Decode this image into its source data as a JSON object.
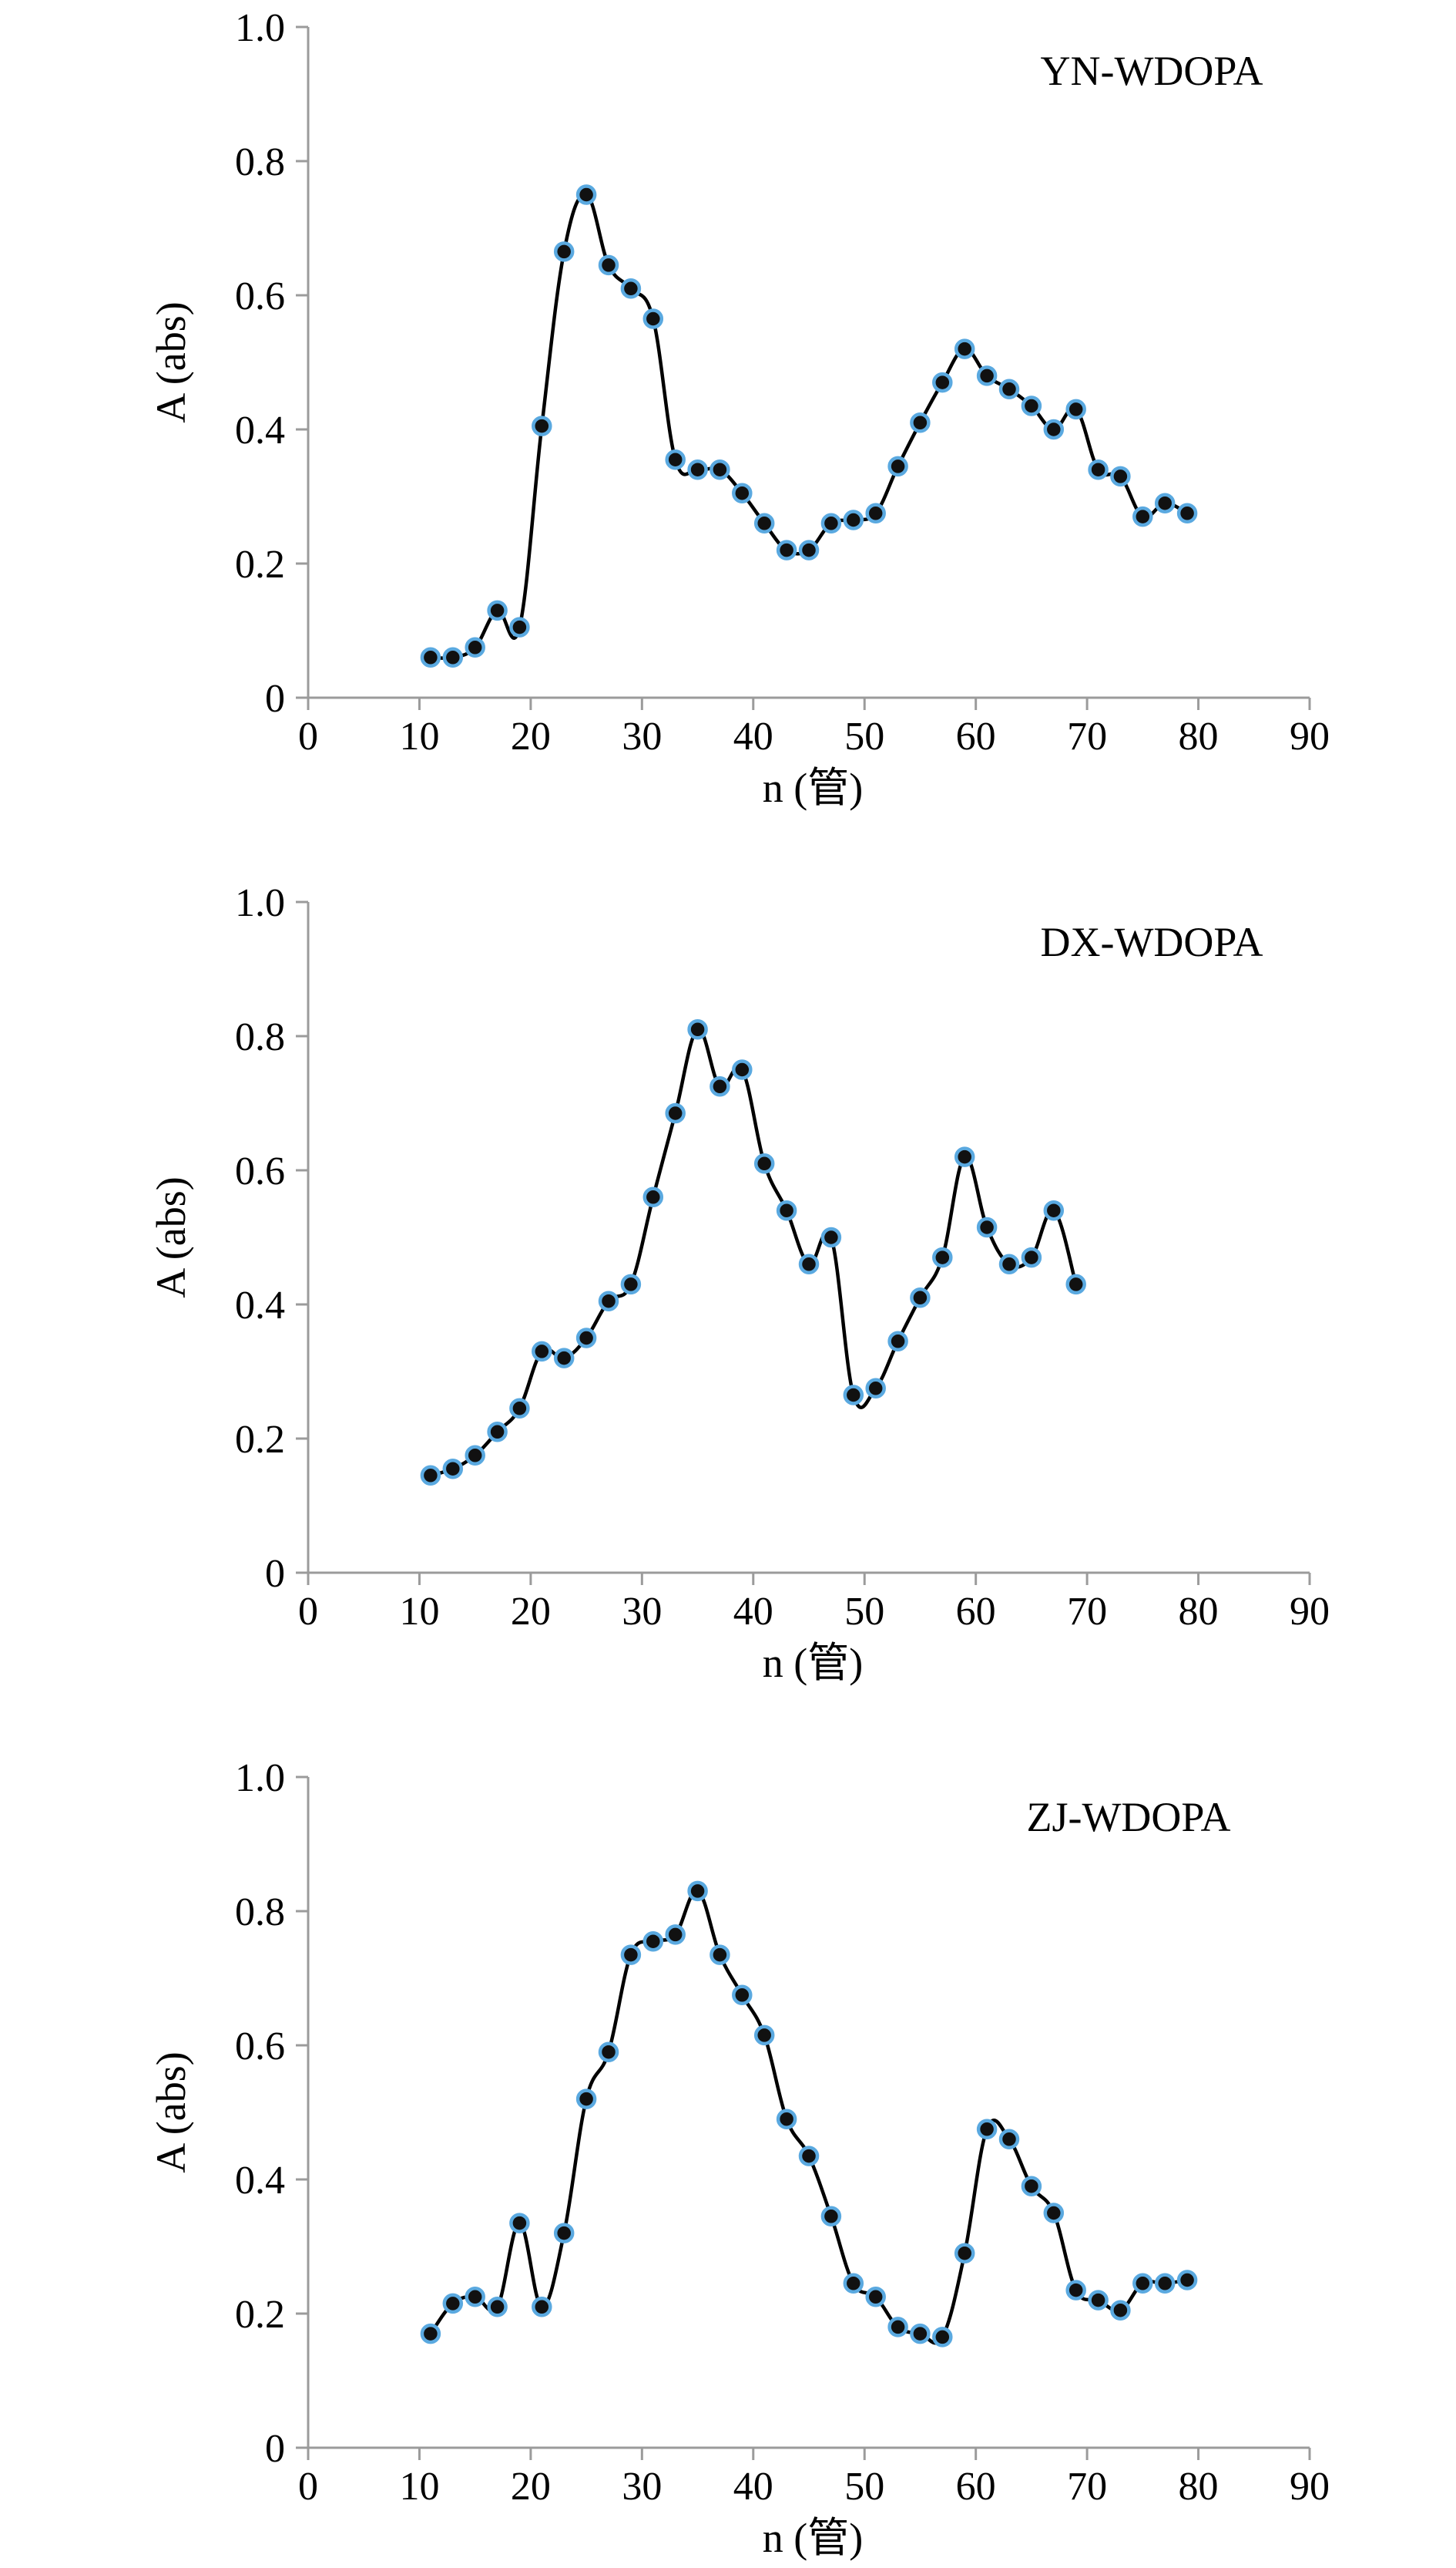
{
  "chart_data": [
    {
      "type": "line",
      "title": "YN-WDOPA",
      "xlabel": "n (管)",
      "ylabel": "A (abs)",
      "xlim": [
        0,
        90
      ],
      "ylim": [
        0,
        1.0
      ],
      "xticks": [
        "0",
        "10",
        "20",
        "30",
        "40",
        "50",
        "60",
        "70",
        "80",
        "90"
      ],
      "yticks": [
        "0",
        "0.2",
        "0.4",
        "0.6",
        "0.8",
        "1.0"
      ],
      "grid": false,
      "legend": "none",
      "series": [
        {
          "x": [
            11,
            13,
            15,
            17,
            19,
            21,
            23,
            25,
            27,
            29,
            31,
            33,
            35,
            37,
            39,
            41,
            43,
            45,
            47,
            49,
            51,
            53,
            55,
            57,
            59,
            61,
            63,
            65,
            67,
            69,
            71,
            73,
            75,
            77,
            79
          ],
          "values": [
            0.06,
            0.06,
            0.075,
            0.13,
            0.105,
            0.405,
            0.665,
            0.75,
            0.645,
            0.61,
            0.565,
            0.355,
            0.34,
            0.34,
            0.305,
            0.26,
            0.22,
            0.22,
            0.26,
            0.265,
            0.275,
            0.345,
            0.41,
            0.47,
            0.52,
            0.48,
            0.46,
            0.435,
            0.4,
            0.43,
            0.34,
            0.33,
            0.27,
            0.29,
            0.275
          ]
        }
      ]
    },
    {
      "type": "line",
      "title": "DX-WDOPA",
      "xlabel": "n (管)",
      "ylabel": "A (abs)",
      "xlim": [
        0,
        90
      ],
      "ylim": [
        0,
        1.0
      ],
      "xticks": [
        "0",
        "10",
        "20",
        "30",
        "40",
        "50",
        "60",
        "70",
        "80",
        "90"
      ],
      "yticks": [
        "0",
        "0.2",
        "0.4",
        "0.6",
        "0.8",
        "1.0"
      ],
      "grid": false,
      "legend": "none",
      "series": [
        {
          "x": [
            11,
            13,
            15,
            17,
            19,
            21,
            23,
            25,
            27,
            29,
            31,
            33,
            35,
            37,
            39,
            41,
            43,
            45,
            47,
            49,
            51,
            53,
            55,
            57,
            59,
            61,
            63,
            65,
            67,
            69
          ],
          "values": [
            0.145,
            0.155,
            0.175,
            0.21,
            0.245,
            0.33,
            0.32,
            0.35,
            0.405,
            0.43,
            0.56,
            0.685,
            0.81,
            0.725,
            0.75,
            0.61,
            0.54,
            0.46,
            0.5,
            0.265,
            0.275,
            0.345,
            0.41,
            0.47,
            0.62,
            0.515,
            0.46,
            0.47,
            0.54,
            0.43
          ]
        }
      ]
    },
    {
      "type": "line",
      "title": "ZJ-WDOPA",
      "xlabel": "n (管)",
      "ylabel": "A (abs)",
      "xlim": [
        0,
        90
      ],
      "ylim": [
        0,
        1.0
      ],
      "xticks": [
        "0",
        "10",
        "20",
        "30",
        "40",
        "50",
        "60",
        "70",
        "80",
        "90"
      ],
      "yticks": [
        "0",
        "0.2",
        "0.4",
        "0.6",
        "0.8",
        "1.0"
      ],
      "grid": false,
      "legend": "none",
      "series": [
        {
          "x": [
            11,
            13,
            15,
            17,
            19,
            21,
            23,
            25,
            27,
            29,
            31,
            33,
            35,
            37,
            39,
            41,
            43,
            45,
            47,
            49,
            51,
            53,
            55,
            57,
            59,
            61,
            63,
            65,
            67,
            69,
            71,
            73,
            75,
            77,
            79
          ],
          "values": [
            0.17,
            0.215,
            0.225,
            0.21,
            0.335,
            0.21,
            0.32,
            0.52,
            0.59,
            0.735,
            0.755,
            0.765,
            0.83,
            0.735,
            0.675,
            0.615,
            0.49,
            0.435,
            0.345,
            0.245,
            0.225,
            0.18,
            0.17,
            0.165,
            0.29,
            0.475,
            0.46,
            0.39,
            0.35,
            0.235,
            0.22,
            0.205,
            0.245,
            0.245,
            0.25
          ]
        }
      ]
    }
  ],
  "colors": {
    "axis": "#9b9b9b",
    "line": "#000000",
    "marker_fill": "#111111",
    "marker_stroke": "#5aa9e0"
  }
}
